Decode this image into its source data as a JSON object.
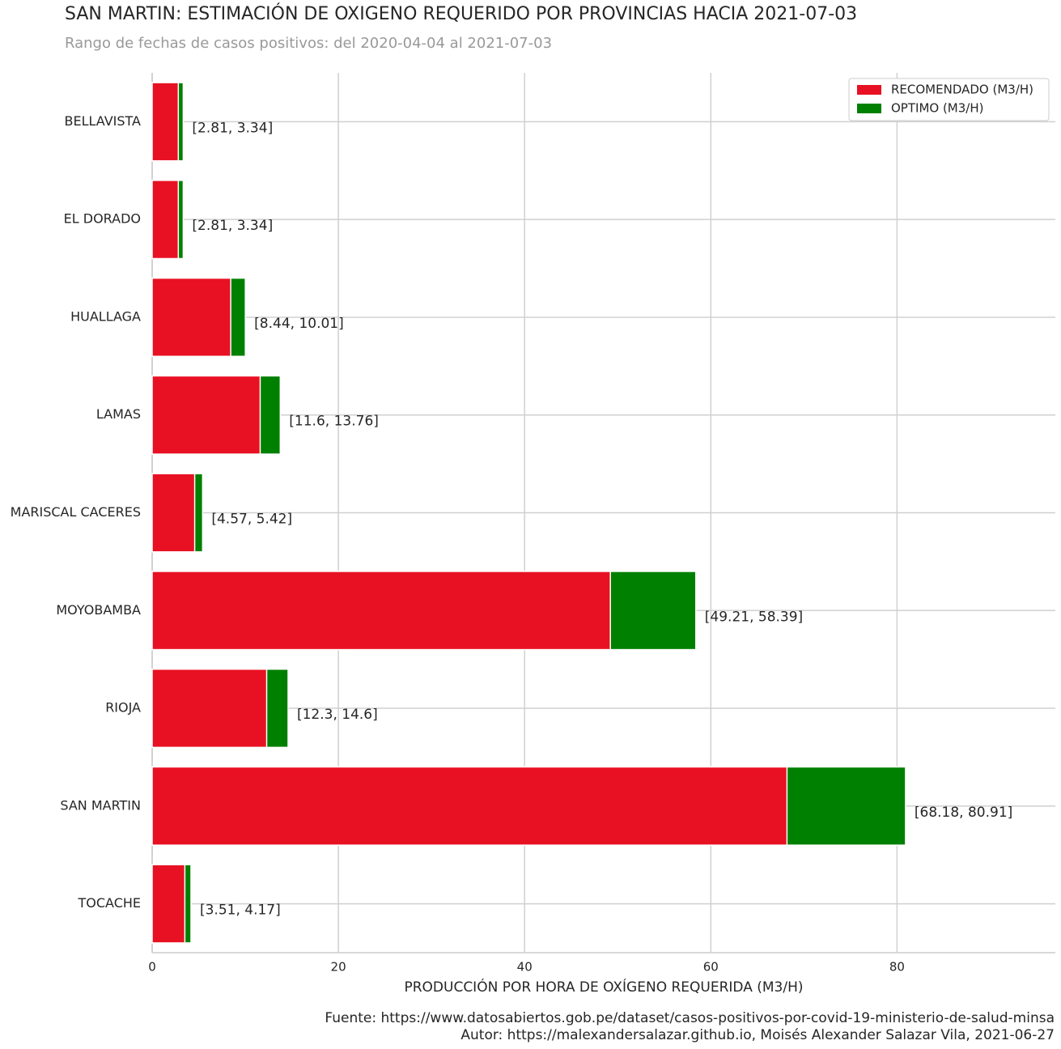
{
  "chart_data": {
    "type": "bar",
    "orientation": "horizontal",
    "barmode": "overlay",
    "title": "SAN MARTIN: ESTIMACIÓN DE OXIGENO REQUERIDO POR PROVINCIAS HACIA 2021-07-03",
    "subtitle": "Rango de fechas de casos positivos: del 2020-04-04 al 2021-07-03",
    "xlabel": "PRODUCCIÓN POR HORA DE OXÍGENO REQUERIDA (M3/H)",
    "footer": [
      "Fuente: https://www.datosabiertos.gob.pe/dataset/casos-positivos-por-covid-19-ministerio-de-salud-minsa",
      "Autor: https://malexandersalazar.github.io, Moisés Alexander Salazar Vila, 2021-06-27"
    ],
    "categories": [
      "BELLAVISTA",
      "EL DORADO",
      "HUALLAGA",
      "LAMAS",
      "MARISCAL CACERES",
      "MOYOBAMBA",
      "RIOJA",
      "SAN MARTIN",
      "TOCACHE"
    ],
    "series": [
      {
        "name": "RECOMENDADO (M3/H)",
        "color": "#e81123",
        "values": [
          2.81,
          2.81,
          8.44,
          11.6,
          4.57,
          49.21,
          12.3,
          68.18,
          3.51
        ]
      },
      {
        "name": "OPTIMO (M3/H)",
        "color": "#008000",
        "values": [
          3.34,
          3.34,
          10.01,
          13.76,
          5.42,
          58.39,
          14.6,
          80.91,
          4.17
        ]
      }
    ],
    "value_labels": [
      "[2.81, 3.34]",
      "[2.81, 3.34]",
      "[8.44, 10.01]",
      "[11.6, 13.76]",
      "[4.57, 5.42]",
      "[49.21, 58.39]",
      "[12.3, 14.6]",
      "[68.18, 80.91]",
      "[3.51, 4.17]"
    ],
    "xlim": [
      0,
      97
    ],
    "xticks": [
      0,
      20,
      40,
      60,
      80
    ],
    "grid": true,
    "legend": "upper right"
  }
}
